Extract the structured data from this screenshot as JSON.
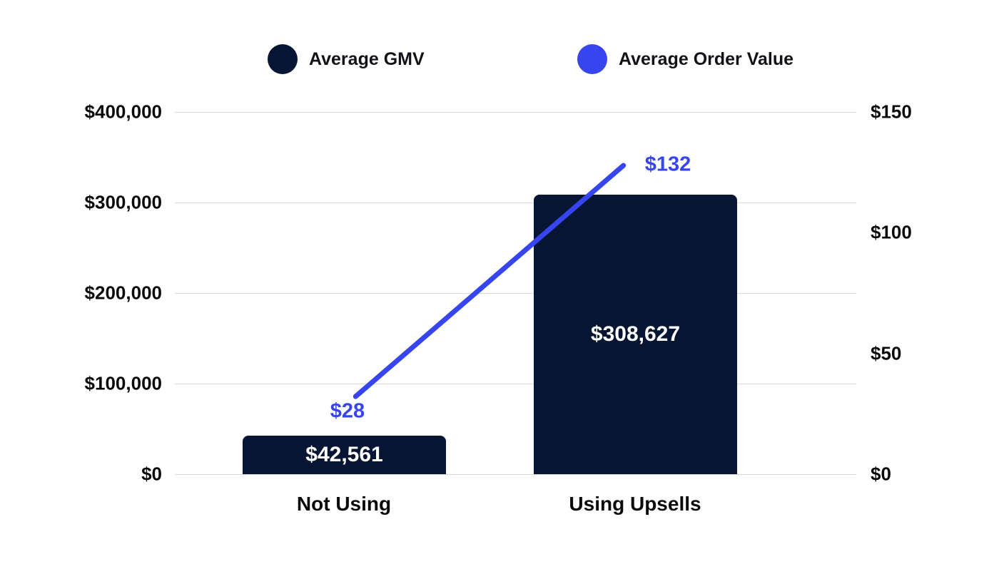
{
  "chart_data": {
    "type": "combo",
    "title": "",
    "categories": [
      "Not Using",
      "Using Upsells"
    ],
    "series": [
      {
        "name": "Average GMV",
        "type": "bar",
        "axis": "left",
        "values": [
          42561,
          308627
        ],
        "labels": [
          "$42,561",
          "$308,627"
        ],
        "color": "#051533"
      },
      {
        "name": "Average Order Value",
        "type": "line",
        "axis": "right",
        "values": [
          28,
          132
        ],
        "labels": [
          "$28",
          "$132"
        ],
        "color": "#3645EE"
      }
    ],
    "left_axis": {
      "min": 0,
      "max": 400000,
      "ticks": [
        {
          "label": "$400,000",
          "value": 400000
        },
        {
          "label": "$300,000",
          "value": 300000
        },
        {
          "label": "$200,000",
          "value": 200000
        },
        {
          "label": "$100,000",
          "value": 100000
        },
        {
          "label": "$0",
          "value": 0
        }
      ]
    },
    "right_axis": {
      "min": 0,
      "max": 150,
      "ticks": [
        {
          "label": "$150",
          "value": 150
        },
        {
          "label": "$100",
          "value": 100
        },
        {
          "label": "$50",
          "value": 50
        },
        {
          "label": "$0",
          "value": 0
        }
      ]
    },
    "legend": [
      {
        "label": "Average GMV",
        "color": "#051533"
      },
      {
        "label": "Average Order Value",
        "color": "#3645EE"
      }
    ],
    "legend_position": "top",
    "grid": true,
    "gridline_color": "#d9d9d9",
    "background": "#ffffff",
    "bar_value_text_color": "#ffffff"
  }
}
